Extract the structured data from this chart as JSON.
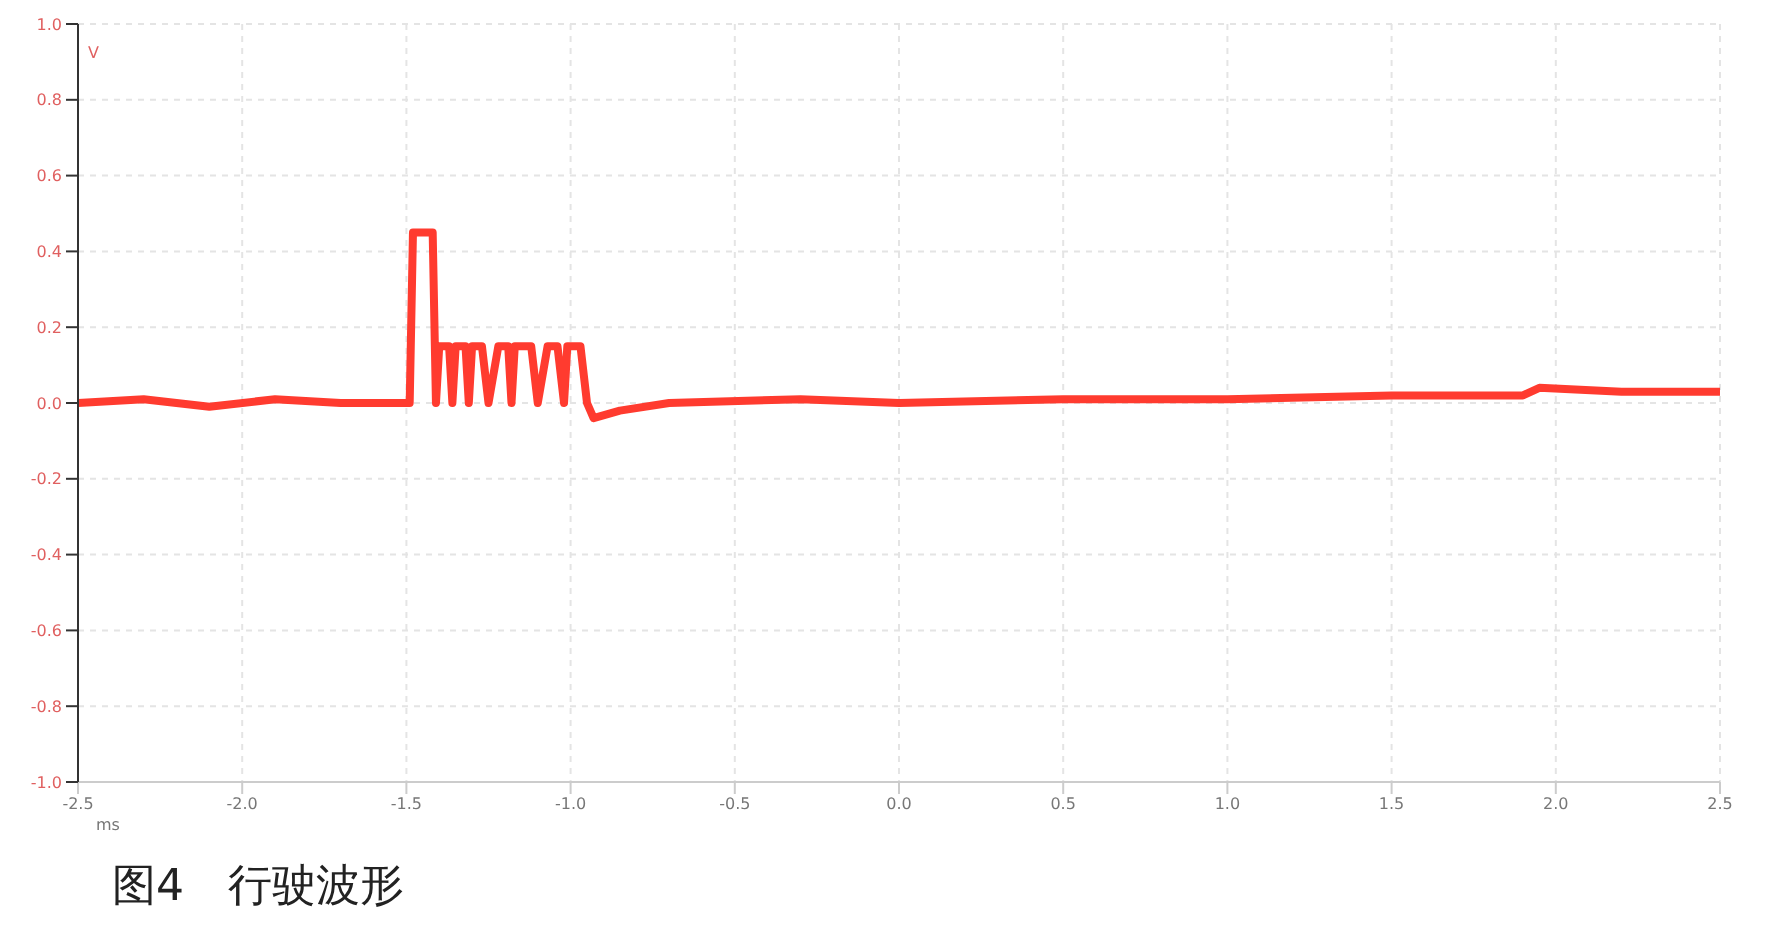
{
  "chart_data": {
    "type": "line",
    "title": "图4　行驶波形",
    "xlabel": "ms",
    "ylabel": "V",
    "x": [
      -2.5,
      -2.3,
      -2.1,
      -1.9,
      -1.7,
      -1.49,
      -1.48,
      -1.42,
      -1.41,
      -1.4,
      -1.37,
      -1.36,
      -1.35,
      -1.32,
      -1.31,
      -1.3,
      -1.27,
      -1.25,
      -1.22,
      -1.19,
      -1.18,
      -1.17,
      -1.12,
      -1.1,
      -1.07,
      -1.04,
      -1.02,
      -1.01,
      -0.97,
      -0.95,
      -0.93,
      -0.85,
      -0.7,
      -0.3,
      0,
      0.5,
      1,
      1.5,
      1.9,
      1.95,
      2.2,
      2.5
    ],
    "series": [
      {
        "color": "#ff3b2f",
        "values": [
          0,
          0.01,
          -0.01,
          0.01,
          0,
          0,
          0.45,
          0.45,
          0,
          0.15,
          0.15,
          0,
          0.15,
          0.15,
          0,
          0.15,
          0.15,
          0,
          0.15,
          0.15,
          0,
          0.15,
          0.15,
          0,
          0.15,
          0.15,
          0,
          0.15,
          0.15,
          0,
          -0.04,
          -0.02,
          0,
          0.01,
          0,
          0.01,
          0.01,
          0.02,
          0.02,
          0.04,
          0.03,
          0.03
        ]
      }
    ],
    "xlim": [
      -2.5,
      2.5
    ],
    "xticks": [
      -2.5,
      {
        "value": -2,
        "label": "-2.0"
      },
      -1.5,
      {
        "value": -1,
        "label": "-1.0"
      },
      -0.5,
      {
        "value": 0,
        "label": "0.0"
      },
      0.5,
      {
        "value": 1,
        "label": "1.0"
      },
      1.5,
      {
        "value": 2,
        "label": "2.0"
      },
      2.5
    ],
    "ylim": [
      -1,
      1
    ],
    "yticks": [
      {
        "value": -1,
        "label": "-1.0"
      },
      -0.8,
      -0.6,
      -0.4,
      -0.2,
      {
        "value": 0,
        "label": "0.0"
      },
      0.2,
      0.4,
      0.6,
      0.8,
      {
        "value": 1,
        "label": "1.0"
      }
    ],
    "grid": true,
    "legend": false,
    "marker": "none",
    "line_style": "solid"
  }
}
